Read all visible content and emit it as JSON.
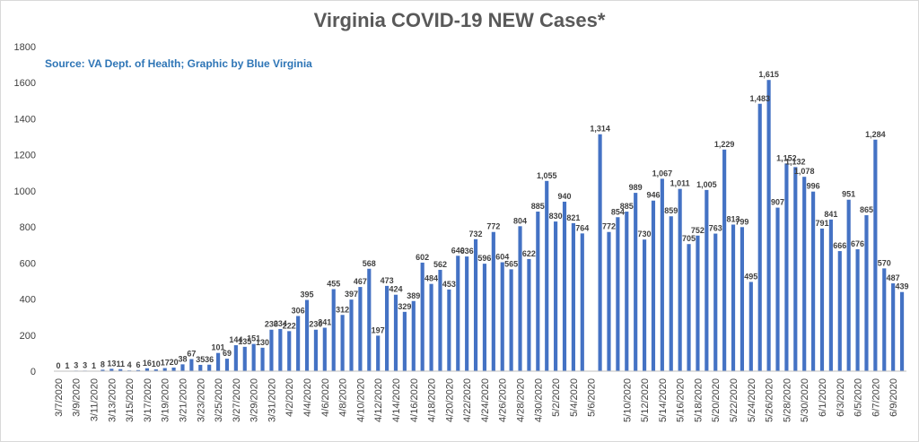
{
  "chart_data": {
    "type": "bar",
    "title": "Virginia COVID-19 NEW Cases*",
    "subtitle": "Source: VA Dept. of Health; Graphic by Blue Virginia",
    "xlabel": "",
    "ylabel": "",
    "ylim": [
      0,
      1800
    ],
    "yticks": [
      0,
      200,
      400,
      600,
      800,
      1000,
      1200,
      1400,
      1600,
      1800
    ],
    "grid": false,
    "bar_color": "#4472c4",
    "categories": [
      "3/7/2020",
      "3/8/2020",
      "3/9/2020",
      "3/10/2020",
      "3/11/2020",
      "3/12/2020",
      "3/13/2020",
      "3/14/2020",
      "3/15/2020",
      "3/16/2020",
      "3/17/2020",
      "3/18/2020",
      "3/19/2020",
      "3/20/2020",
      "3/21/2020",
      "3/22/2020",
      "3/23/2020",
      "3/24/2020",
      "3/25/2020",
      "3/26/2020",
      "3/27/2020",
      "3/28/2020",
      "3/29/2020",
      "3/30/2020",
      "3/31/2020",
      "4/1/2020",
      "4/2/2020",
      "4/3/2020",
      "4/4/2020",
      "4/5/2020",
      "4/6/2020",
      "4/7/2020",
      "4/8/2020",
      "4/9/2020",
      "4/10/2020",
      "4/11/2020",
      "4/12/2020",
      "4/13/2020",
      "4/14/2020",
      "4/15/2020",
      "4/16/2020",
      "4/17/2020",
      "4/18/2020",
      "4/19/2020",
      "4/20/2020",
      "4/21/2020",
      "4/22/2020",
      "4/23/2020",
      "4/24/2020",
      "4/25/2020",
      "4/26/2020",
      "4/27/2020",
      "4/28/2020",
      "4/29/2020",
      "4/30/2020",
      "5/1/2020",
      "5/2/2020",
      "5/3/2020",
      "5/4/2020",
      "5/5/2020",
      "5/6/2020",
      "5/7/2020",
      "5/8/2020",
      "5/9/2020",
      "5/10/2020",
      "5/11/2020",
      "5/12/2020",
      "5/13/2020",
      "5/14/2020",
      "5/15/2020",
      "5/16/2020",
      "5/17/2020",
      "5/18/2020",
      "5/19/2020",
      "5/20/2020",
      "5/21/2020",
      "5/22/2020",
      "5/23/2020",
      "5/24/2020",
      "5/25/2020",
      "5/26/2020",
      "5/27/2020",
      "5/28/2020",
      "5/29/2020",
      "5/30/2020",
      "5/31/2020",
      "6/1/2020",
      "6/2/2020",
      "6/3/2020",
      "6/4/2020",
      "6/5/2020",
      "6/6/2020",
      "6/7/2020",
      "6/8/2020",
      "6/9/2020",
      "6/10/2020"
    ],
    "x_tick_labels": [
      "3/7/2020",
      "3/9/2020",
      "3/11/2020",
      "3/13/2020",
      "3/15/2020",
      "3/17/2020",
      "3/19/2020",
      "3/21/2020",
      "3/23/2020",
      "3/25/2020",
      "3/27/2020",
      "3/29/2020",
      "3/31/2020",
      "4/2/2020",
      "4/4/2020",
      "4/6/2020",
      "4/8/2020",
      "4/10/2020",
      "4/12/2020",
      "4/14/2020",
      "4/16/2020",
      "4/18/2020",
      "4/20/2020",
      "4/22/2020",
      "4/24/2020",
      "4/26/2020",
      "4/28/2020",
      "4/30/2020",
      "5/2/2020",
      "5/4/2020",
      "5/6/2020",
      "5/10/2020",
      "5/12/2020",
      "5/14/2020",
      "5/16/2020",
      "5/18/2020",
      "5/20/2020",
      "5/22/2020",
      "5/24/2020",
      "5/26/2020",
      "5/28/2020",
      "5/30/2020",
      "6/1/2020",
      "6/3/2020",
      "6/5/2020",
      "6/7/2020",
      "6/9/2020"
    ],
    "values": [
      0,
      1,
      3,
      3,
      1,
      8,
      13,
      11,
      4,
      6,
      16,
      10,
      17,
      20,
      38,
      67,
      35,
      36,
      101,
      69,
      144,
      135,
      151,
      130,
      230,
      234,
      222,
      306,
      395,
      230,
      241,
      455,
      312,
      397,
      467,
      568,
      197,
      473,
      424,
      329,
      389,
      602,
      484,
      562,
      453,
      640,
      636,
      732,
      596,
      772,
      604,
      565,
      804,
      622,
      885,
      1055,
      830,
      940,
      821,
      764,
      null,
      1314,
      772,
      854,
      885,
      989,
      730,
      946,
      1067,
      859,
      1011,
      705,
      752,
      1005,
      763,
      1229,
      813,
      799,
      495,
      1483,
      1615,
      907,
      1152,
      1132,
      1078,
      996,
      791,
      841,
      666,
      951,
      676,
      865,
      1284,
      570,
      487,
      439
    ],
    "data_labels": [
      "0",
      "1",
      "3",
      "3",
      "1",
      "8",
      "13",
      "11",
      "4",
      "6",
      "16",
      "10",
      "17",
      "20",
      "38",
      "67",
      "35",
      "36",
      "101",
      "69",
      "144",
      "135",
      "151",
      "130",
      "230",
      "234",
      "222",
      "306",
      "395",
      "230",
      "241",
      "455",
      "312",
      "397",
      "467",
      "568",
      "197",
      "473",
      "424",
      "329",
      "389",
      "602",
      "484",
      "562",
      "453",
      "640",
      "636",
      "732",
      "596",
      "772",
      "604",
      "565",
      "804",
      "622",
      "885",
      "1,055",
      "830",
      "940",
      "821",
      "764",
      "",
      "1,314",
      "772",
      "854",
      "885",
      "989",
      "730",
      "946",
      "1,067",
      "859",
      "1,011",
      "705",
      "752",
      "1,005",
      "763",
      "1,229",
      "813",
      "799",
      "495",
      "1,483",
      "1,615",
      "907",
      "1,152",
      "1,132",
      "1,078",
      "996",
      "791",
      "841",
      "666",
      "951",
      "676",
      "865",
      "1,284",
      "570",
      "487",
      "439"
    ]
  }
}
